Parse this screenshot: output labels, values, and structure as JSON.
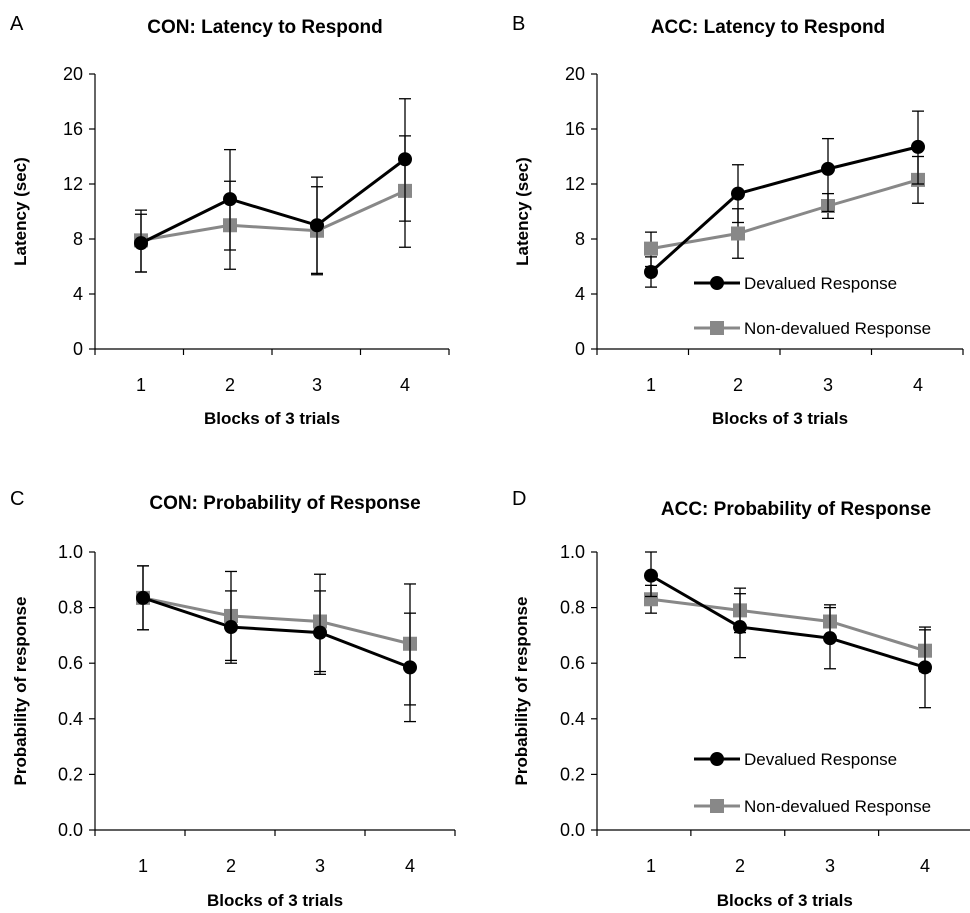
{
  "chart_data": [
    {
      "panel": "A",
      "type": "line",
      "title": "CON: Latency to Respond",
      "xlabel": "Blocks of 3 trials",
      "ylabel": "Latency (sec)",
      "categories": [
        "1",
        "2",
        "3",
        "4"
      ],
      "ylim": [
        0,
        20
      ],
      "yticks": [
        "0",
        "4",
        "8",
        "12",
        "16",
        "20"
      ],
      "legend": false,
      "series": [
        {
          "name": "Devalued Response",
          "color": "#000000",
          "marker": "circle",
          "values": [
            7.7,
            10.9,
            9.0,
            13.8
          ],
          "err_low": [
            5.6,
            7.2,
            5.5,
            9.3
          ],
          "err_high": [
            9.8,
            14.5,
            12.5,
            18.2
          ]
        },
        {
          "name": "Non-devalued Response",
          "color": "#888888",
          "marker": "square",
          "values": [
            7.9,
            9.0,
            8.6,
            11.5
          ],
          "err_low": [
            5.6,
            5.8,
            5.4,
            7.4
          ],
          "err_high": [
            10.1,
            12.2,
            11.8,
            15.5
          ]
        }
      ]
    },
    {
      "panel": "B",
      "type": "line",
      "title": "ACC: Latency to Respond",
      "xlabel": "Blocks of 3 trials",
      "ylabel": "Latency (sec)",
      "categories": [
        "1",
        "2",
        "3",
        "4"
      ],
      "ylim": [
        0,
        20
      ],
      "yticks": [
        "0",
        "4",
        "8",
        "12",
        "16",
        "20"
      ],
      "legend": true,
      "legend_position": "lower-right",
      "series": [
        {
          "name": "Devalued Response",
          "color": "#000000",
          "marker": "circle",
          "values": [
            5.6,
            11.3,
            13.1,
            14.7
          ],
          "err_low": [
            4.5,
            9.2,
            10.0,
            12.0
          ],
          "err_high": [
            6.7,
            13.4,
            15.3,
            17.3
          ]
        },
        {
          "name": "Non-devalued Response",
          "color": "#888888",
          "marker": "square",
          "values": [
            7.3,
            8.4,
            10.4,
            12.3
          ],
          "err_low": [
            6.0,
            6.6,
            9.5,
            10.6
          ],
          "err_high": [
            8.5,
            10.2,
            11.3,
            14.0
          ]
        }
      ]
    },
    {
      "panel": "C",
      "type": "line",
      "title": "CON: Probability of Response",
      "xlabel": "Blocks of 3 trials",
      "ylabel": "Probability of response",
      "categories": [
        "1",
        "2",
        "3",
        "4"
      ],
      "ylim": [
        0,
        1
      ],
      "yticks": [
        "0.0",
        "0.2",
        "0.4",
        "0.6",
        "0.8",
        "1.0"
      ],
      "legend": false,
      "series": [
        {
          "name": "Devalued Response",
          "color": "#000000",
          "marker": "circle",
          "values": [
            0.835,
            0.73,
            0.71,
            0.585
          ],
          "err_low": [
            0.72,
            0.6,
            0.56,
            0.39
          ],
          "err_high": [
            0.95,
            0.86,
            0.86,
            0.78
          ]
        },
        {
          "name": "Non-devalued Response",
          "color": "#888888",
          "marker": "square",
          "values": [
            0.835,
            0.77,
            0.75,
            0.67
          ],
          "err_low": [
            0.72,
            0.61,
            0.57,
            0.45
          ],
          "err_high": [
            0.95,
            0.93,
            0.92,
            0.885
          ]
        }
      ]
    },
    {
      "panel": "D",
      "type": "line",
      "title": "ACC: Probability of Response",
      "xlabel": "Blocks of 3 trials",
      "ylabel": "Probability of response",
      "categories": [
        "1",
        "2",
        "3",
        "4"
      ],
      "ylim": [
        0,
        1
      ],
      "yticks": [
        "0.0",
        "0.2",
        "0.4",
        "0.6",
        "0.8",
        "1.0"
      ],
      "legend": true,
      "legend_position": "lower-right",
      "series": [
        {
          "name": "Devalued Response",
          "color": "#000000",
          "marker": "circle",
          "values": [
            0.915,
            0.73,
            0.69,
            0.585
          ],
          "err_low": [
            0.84,
            0.62,
            0.58,
            0.44
          ],
          "err_high": [
            1.0,
            0.85,
            0.8,
            0.73
          ]
        },
        {
          "name": "Non-devalued Response",
          "color": "#888888",
          "marker": "square",
          "values": [
            0.83,
            0.79,
            0.75,
            0.645
          ],
          "err_low": [
            0.78,
            0.71,
            0.69,
            0.57
          ],
          "err_high": [
            0.88,
            0.87,
            0.81,
            0.72
          ]
        }
      ]
    }
  ]
}
